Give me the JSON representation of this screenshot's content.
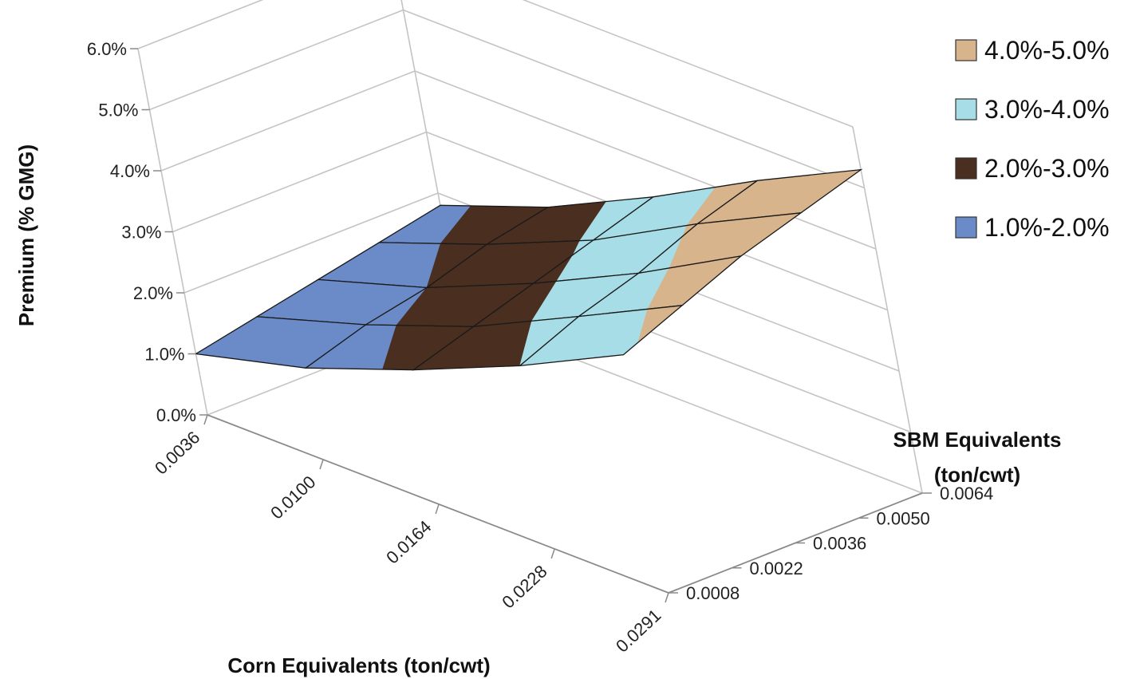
{
  "chart_data": {
    "type": "surface",
    "title": "",
    "zlabel": "Premium (% GMG)",
    "xlabel": "Corn Equivalents (ton/cwt)",
    "ylabel_lines": [
      "SBM Equivalents",
      "(ton/cwt)"
    ],
    "z_ticks": [
      "0.0%",
      "1.0%",
      "2.0%",
      "3.0%",
      "4.0%",
      "5.0%",
      "6.0%"
    ],
    "zlim": [
      0,
      6
    ],
    "corn_ticks": [
      "0.0036",
      "0.0100",
      "0.0164",
      "0.0228",
      "0.0291"
    ],
    "sbm_ticks": [
      "0.0008",
      "0.0022",
      "0.0036",
      "0.0050",
      "0.0064"
    ],
    "x": [
      0.0036,
      0.01,
      0.0164,
      0.0228,
      0.0291
    ],
    "y": [
      0.0008,
      0.0022,
      0.0036,
      0.005,
      0.0064
    ],
    "z_percent": [
      [
        1.0,
        1.5,
        2.2,
        3.0,
        3.9
      ],
      [
        1.2,
        1.8,
        2.5,
        3.4,
        4.3
      ],
      [
        1.4,
        2.0,
        2.8,
        3.7,
        4.7
      ],
      [
        1.6,
        2.3,
        3.1,
        4.1,
        5.0
      ],
      [
        1.8,
        2.5,
        3.4,
        4.4,
        5.3
      ]
    ],
    "legend_position": "right",
    "legend": [
      {
        "label": "4.0%-5.0%",
        "color": "#d8b48c"
      },
      {
        "label": "3.0%-4.0%",
        "color": "#a6dde6"
      },
      {
        "label": "2.0%-3.0%",
        "color": "#4a2e20"
      },
      {
        "label": "1.0%-2.0%",
        "color": "#6a8ac8"
      }
    ],
    "grid": true
  }
}
